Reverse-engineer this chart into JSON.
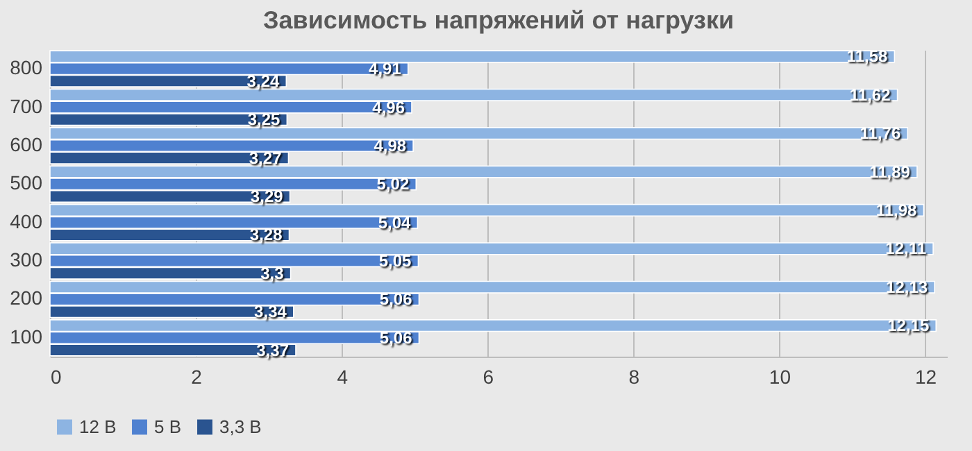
{
  "chart_data": {
    "type": "bar",
    "orientation": "horizontal",
    "title": "Зависимость напряжений от нагрузки",
    "categories": [
      "800",
      "700",
      "600",
      "500",
      "400",
      "300",
      "200",
      "100"
    ],
    "series": [
      {
        "name": "12 В",
        "color": "#8db4e2",
        "values": [
          11.58,
          11.62,
          11.76,
          11.89,
          11.98,
          12.11,
          12.13,
          12.15
        ],
        "value_labels": [
          "11,58",
          "11,62",
          "11,76",
          "11,89",
          "11,98",
          "12,11",
          "12,13",
          "12,15"
        ]
      },
      {
        "name": "5 В",
        "color": "#4f81d0",
        "values": [
          4.91,
          4.96,
          4.98,
          5.02,
          5.04,
          5.05,
          5.06,
          5.06
        ],
        "value_labels": [
          "4,91",
          "4,96",
          "4,98",
          "5,02",
          "5,04",
          "5,05",
          "5,06",
          "5,06"
        ]
      },
      {
        "name": "3,3 В",
        "color": "#2a5490",
        "values": [
          3.24,
          3.25,
          3.27,
          3.29,
          3.28,
          3.3,
          3.34,
          3.37
        ],
        "value_labels": [
          "3,24",
          "3,25",
          "3,27",
          "3,29",
          "3,28",
          "3,3",
          "3,34",
          "3,37"
        ]
      }
    ],
    "xlim": [
      0,
      12.3
    ],
    "xticks": [
      0,
      2,
      4,
      6,
      8,
      10,
      12
    ],
    "grid": "x",
    "legend": "bottom"
  }
}
